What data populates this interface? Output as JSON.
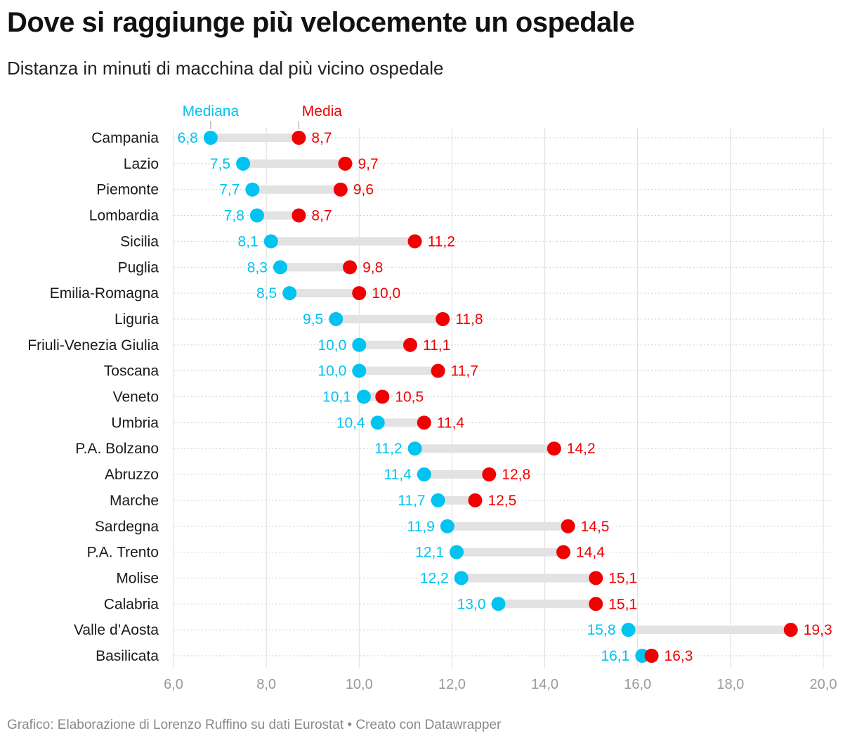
{
  "header": {
    "title": "Dove si raggiunge più velocemente un ospedale",
    "subtitle": "Distanza in minuti di macchina dal più vicino ospedale"
  },
  "footer": {
    "source": "Grafico: Elaborazione di Lorenzo Ruffino su dati Eurostat • Creato con Datawrapper"
  },
  "chart_data": {
    "type": "dumbbell",
    "title": "Dove si raggiunge più velocemente un ospedale",
    "subtitle": "Distanza in minuti di macchina dal più vicino ospedale",
    "xlim": [
      6,
      20
    ],
    "ticks": [
      6,
      8,
      10,
      12,
      14,
      16,
      18,
      20
    ],
    "tick_labels": [
      "6,0",
      "8,0",
      "10,0",
      "12,0",
      "14,0",
      "16,0",
      "18,0",
      "20,0"
    ],
    "colors": {
      "mediana": "#00c3f0",
      "media": "#f00000",
      "connector": "#e2e2e2",
      "grid": "#dcdcdc",
      "axis_text": "#9a9a9a"
    },
    "legend": {
      "mediana": "Mediana",
      "media": "Media"
    },
    "categories": [
      "Campania",
      "Lazio",
      "Piemonte",
      "Lombardia",
      "Sicilia",
      "Puglia",
      "Emilia-Romagna",
      "Liguria",
      "Friuli-Venezia Giulia",
      "Toscana",
      "Veneto",
      "Umbria",
      "P.A. Bolzano",
      "Abruzzo",
      "Marche",
      "Sardegna",
      "P.A. Trento",
      "Molise",
      "Calabria",
      "Valle d’Aosta",
      "Basilicata"
    ],
    "series": [
      {
        "name": "Mediana",
        "values": [
          6.8,
          7.5,
          7.7,
          7.8,
          8.1,
          8.3,
          8.5,
          9.5,
          10.0,
          10.0,
          10.1,
          10.4,
          11.2,
          11.4,
          11.7,
          11.9,
          12.1,
          12.2,
          13.0,
          15.8,
          16.1
        ],
        "labels": [
          "6,8",
          "7,5",
          "7,7",
          "7,8",
          "8,1",
          "8,3",
          "8,5",
          "9,5",
          "10,0",
          "10,0",
          "10,1",
          "10,4",
          "11,2",
          "11,4",
          "11,7",
          "11,9",
          "12,1",
          "12,2",
          "13,0",
          "15,8",
          "16,1"
        ]
      },
      {
        "name": "Media",
        "values": [
          8.7,
          9.7,
          9.6,
          8.7,
          11.2,
          9.8,
          10.0,
          11.8,
          11.1,
          11.7,
          10.5,
          11.4,
          14.2,
          12.8,
          12.5,
          14.5,
          14.4,
          15.1,
          15.1,
          19.3,
          16.3
        ],
        "labels": [
          "8,7",
          "9,7",
          "9,6",
          "8,7",
          "11,2",
          "9,8",
          "10,0",
          "11,8",
          "11,1",
          "11,7",
          "10,5",
          "11,4",
          "14,2",
          "12,8",
          "12,5",
          "14,5",
          "14,4",
          "15,1",
          "15,1",
          "19,3",
          "16,3"
        ]
      }
    ]
  }
}
